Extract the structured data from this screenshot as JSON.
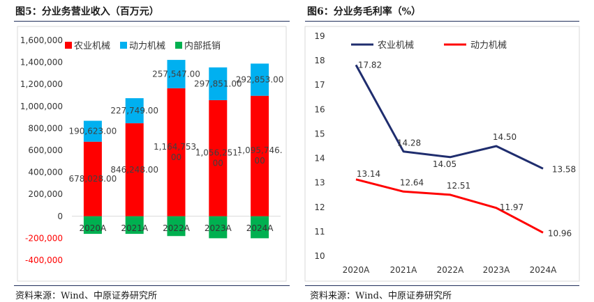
{
  "left_panel": {
    "title": "图5：分业务营业收入（百万元）",
    "source": "资料来源：Wind、中原证券研究所"
  },
  "right_panel": {
    "title": "图6：分业务毛利率（%）",
    "source": "资料来源：Wind、中原证券研究所"
  },
  "colors": {
    "red": "#ff0000",
    "cyan": "#00b0f0",
    "green": "#00b050",
    "navy": "#1f2d6e",
    "rule": "#1f2d5a"
  },
  "chart_data": [
    {
      "type": "bar",
      "stacked": true,
      "categories": [
        "2020A",
        "2021A",
        "2022A",
        "2023A",
        "2024A"
      ],
      "series": [
        {
          "name": "农业机械",
          "values": [
            678028,
            846248,
            1164753,
            1056251,
            1095746
          ],
          "labels": [
            "678,028.00",
            "846,248.00",
            "1,164,753.\n00",
            "1,056,251.\n00",
            "1,095,746.\n00"
          ],
          "color": "#ff0000"
        },
        {
          "name": "动力机械",
          "values": [
            190623,
            227749,
            257547,
            297851,
            292853
          ],
          "labels": [
            "190,623.00",
            "227,749.00",
            "257,547.00",
            "297,851.00",
            "292,853.00"
          ],
          "color": "#00b0f0"
        },
        {
          "name": "内部抵销",
          "values": [
            -160000,
            -160000,
            -180000,
            -200000,
            -200000
          ],
          "color": "#00b050"
        }
      ],
      "yticks": [
        "1,600,000",
        "1,400,000",
        "1,200,000",
        "1,000,000",
        "800,000",
        "600,000",
        "400,000",
        "200,000",
        "0",
        "-200,000",
        "-400,000"
      ],
      "ylim": [
        -400000,
        1600000
      ],
      "legend": "top-left",
      "grid": false
    },
    {
      "type": "line",
      "categories": [
        "2020A",
        "2021A",
        "2022A",
        "2023A",
        "2024A"
      ],
      "series": [
        {
          "name": "农业机械",
          "values": [
            17.82,
            14.28,
            14.05,
            14.5,
            13.58
          ],
          "labels": [
            "17.82",
            "14.28",
            "14.05",
            "14.50",
            "13.58"
          ],
          "color": "#1f2d6e"
        },
        {
          "name": "动力机械",
          "values": [
            13.14,
            12.64,
            12.51,
            11.97,
            10.96
          ],
          "labels": [
            "13.14",
            "12.64",
            "12.51",
            "11.97",
            "10.96"
          ],
          "color": "#ff0000"
        }
      ],
      "yticks": [
        "19",
        "18",
        "17",
        "16",
        "15",
        "14",
        "13",
        "12",
        "11",
        "10"
      ],
      "ylim": [
        10,
        19
      ],
      "legend": "top",
      "grid": false
    }
  ]
}
